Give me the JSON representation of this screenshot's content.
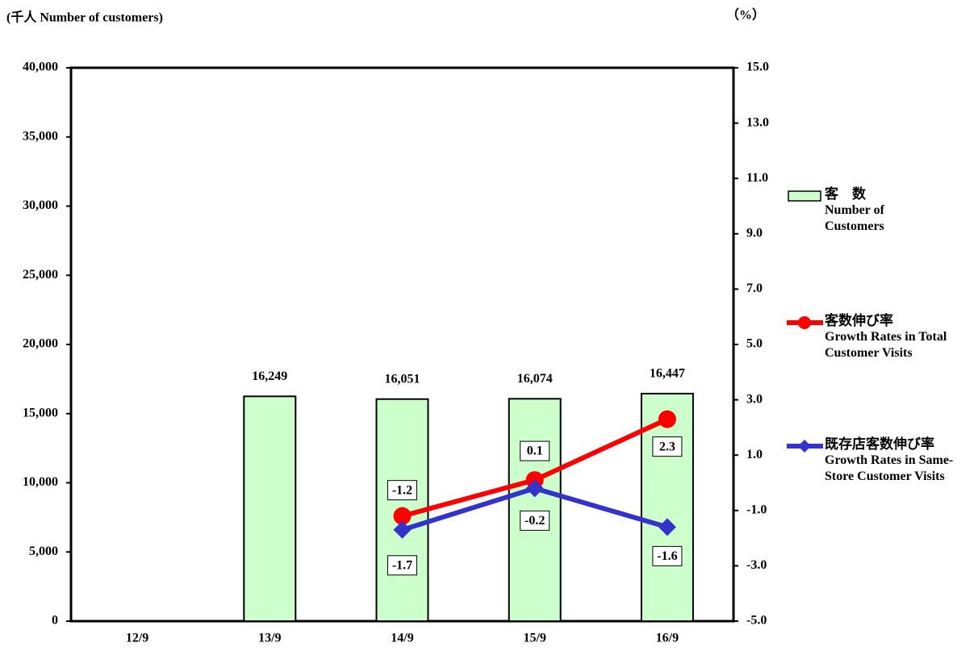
{
  "chart_data": {
    "type": "bar",
    "y_label": "(千人  Number of customers)",
    "y2_label": "（%）",
    "categories": [
      "12/9",
      "13/9",
      "14/9",
      "15/9",
      "16/9"
    ],
    "ylim": [
      0,
      40000
    ],
    "yticks": [
      0,
      {
        "value": 5000,
        "label": "5,000"
      },
      {
        "value": 10000,
        "label": "10,000"
      },
      {
        "value": 15000,
        "label": "15,000"
      },
      {
        "value": 20000,
        "label": "20,000"
      },
      {
        "value": 25000,
        "label": "25,000"
      },
      {
        "value": 30000,
        "label": "30,000"
      },
      {
        "value": 35000,
        "label": "35,000"
      },
      {
        "value": 40000,
        "label": "40,000"
      }
    ],
    "y2lim": [
      -5,
      15
    ],
    "y2ticks": [
      {
        "value": -5,
        "label": "-5.0"
      },
      {
        "value": -3,
        "label": "-3.0"
      },
      {
        "value": -1,
        "label": "-1.0"
      },
      {
        "value": 1,
        "label": "1.0"
      },
      {
        "value": 3,
        "label": "3.0"
      },
      {
        "value": 5,
        "label": "5.0"
      },
      {
        "value": 7,
        "label": "7.0"
      },
      {
        "value": 9,
        "label": "9.0"
      },
      {
        "value": 11,
        "label": "11.0"
      },
      {
        "value": 13,
        "label": "13.0"
      },
      {
        "value": 15,
        "label": "15.0"
      }
    ],
    "series": [
      {
        "name": "客　数",
        "name_en": "Number of Customers",
        "type": "bar",
        "color": "#ccffcc",
        "values": [
          null,
          16249,
          16051,
          16074,
          16447
        ],
        "value_labels": [
          null,
          "16,249",
          "16,051",
          "16,074",
          "16,447"
        ]
      },
      {
        "name": "客数伸び率",
        "name_en": "Growth Rates in Total Customer Visits",
        "type": "line",
        "marker": "circle",
        "axis": "y2",
        "color": "#ff0000",
        "values": [
          null,
          null,
          -1.2,
          0.1,
          2.3
        ]
      },
      {
        "name": "既存店客数伸び率",
        "name_en": "Growth Rates in Same-Store Customer Visits",
        "type": "line",
        "marker": "diamond",
        "axis": "y2",
        "color": "#3333cc",
        "values": [
          null,
          null,
          -1.7,
          -0.2,
          -1.6
        ]
      }
    ]
  }
}
